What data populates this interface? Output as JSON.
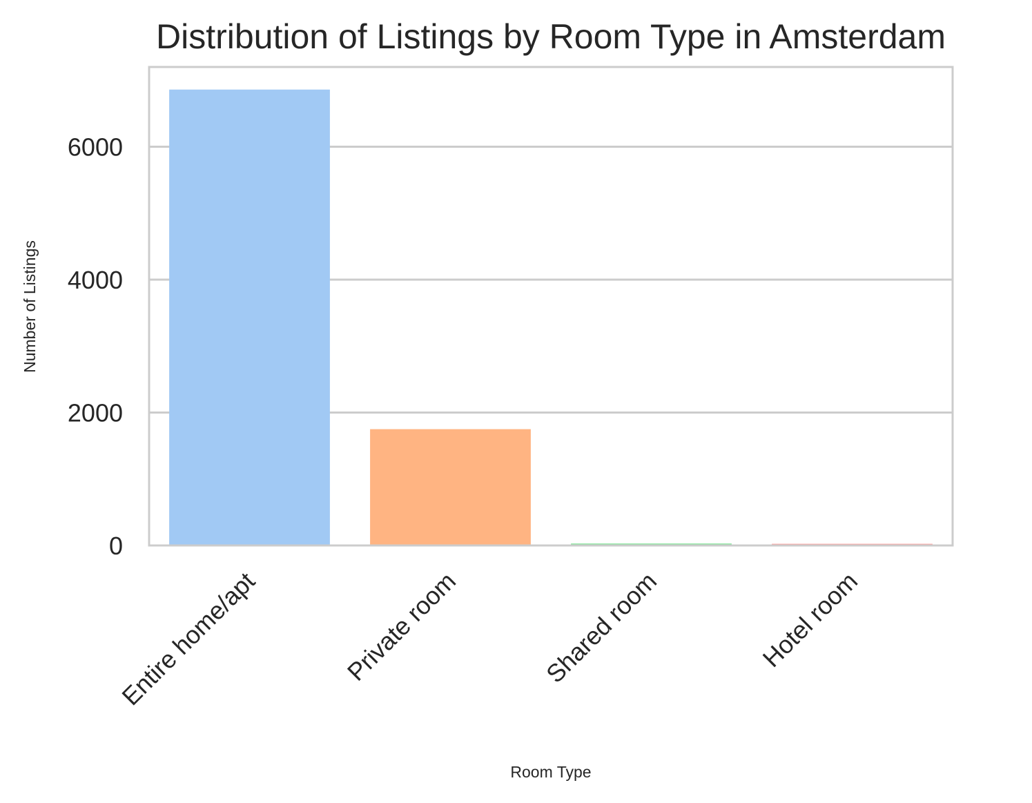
{
  "chart_data": {
    "type": "bar",
    "title": "Distribution of Listings by Room Type in Amsterdam",
    "xlabel": "Room Type",
    "ylabel": "Number of Listings",
    "categories": [
      "Entire home/apt",
      "Private room",
      "Shared room",
      "Hotel room"
    ],
    "values": [
      6860,
      1750,
      30,
      25
    ],
    "ylim": [
      0,
      7200
    ],
    "yticks": [
      0,
      2000,
      4000,
      6000
    ],
    "ytick_labels": [
      "0",
      "2000",
      "4000",
      "6000"
    ],
    "grid": "horizontal",
    "colors": [
      "#a1c9f4",
      "#ffb482",
      "#8de5a1",
      "#ff9f9b"
    ]
  }
}
